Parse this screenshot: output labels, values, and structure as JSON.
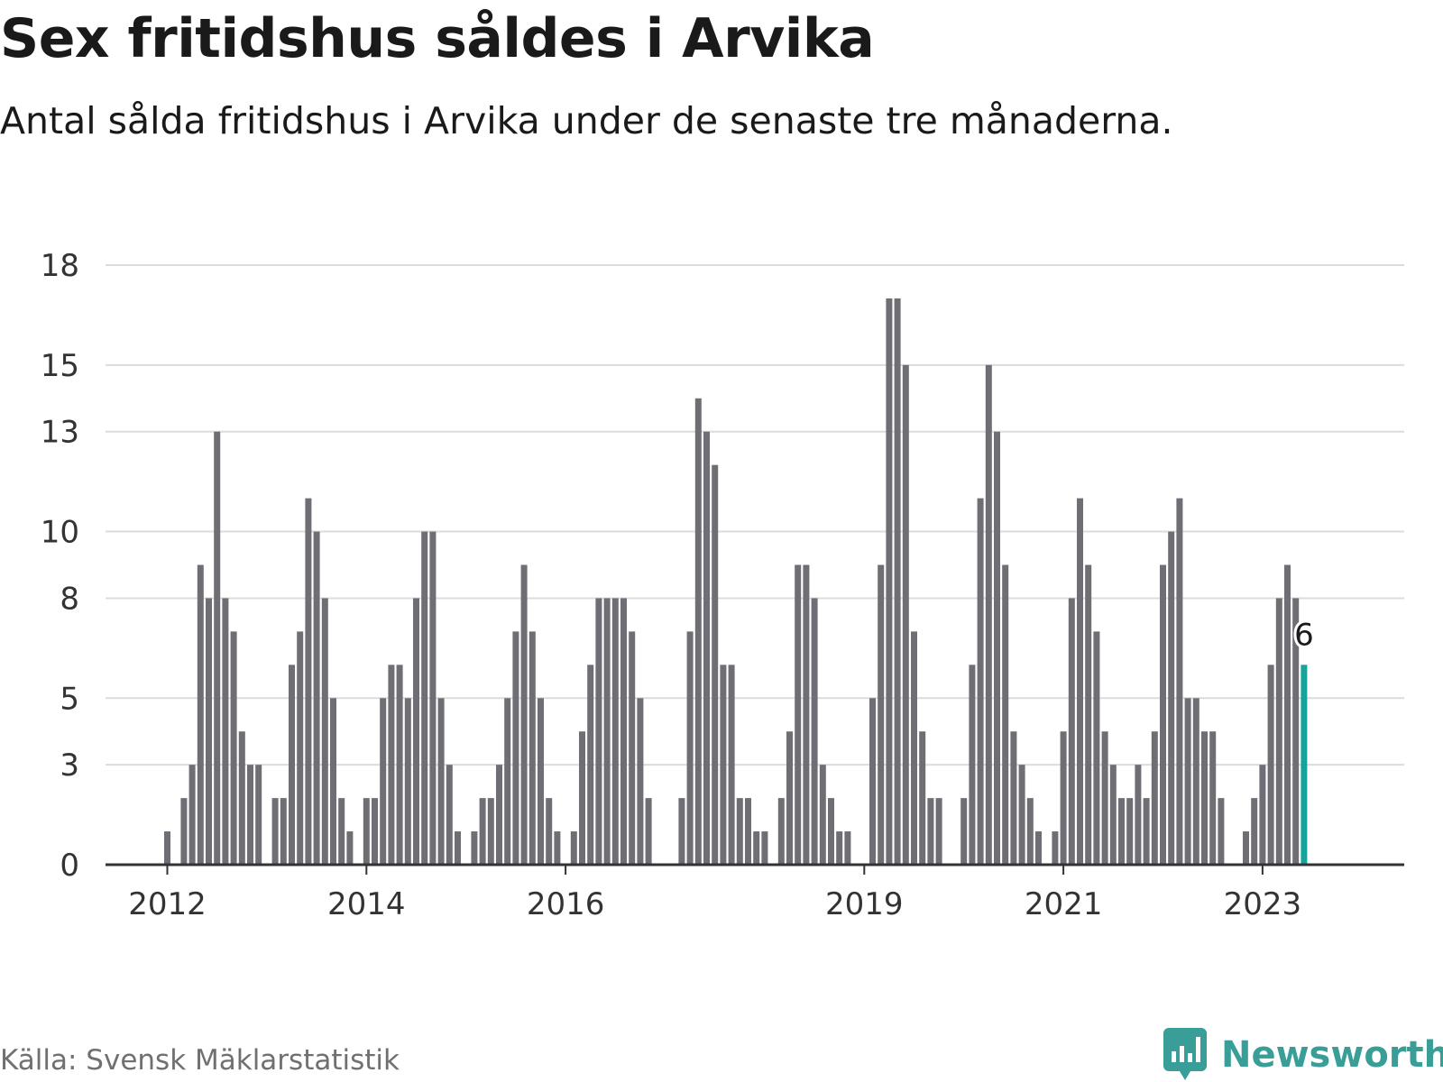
{
  "title": "Sex fritidshus såldes i Arvika",
  "subtitle": "Antal sålda fritidshus i Arvika under de senaste tre månaderna.",
  "source": "Källa: Svensk Mäklarstatistik",
  "brand": "Newsworthy",
  "colors": {
    "bar": "#6e6e74",
    "highlight": "#16a39a",
    "grid": "#dcdcdc",
    "axis": "#333333",
    "brand": "#3a9e98"
  },
  "chart_data": {
    "type": "bar",
    "x_start": "2012-01",
    "x_interval": "month",
    "x_ticks": [
      "2012",
      "2014",
      "2016",
      "2019",
      "2021",
      "2023"
    ],
    "y_ticks": [
      "0",
      "3",
      "5",
      "8",
      "10",
      "13",
      "15",
      "18"
    ],
    "ylim": [
      0,
      18
    ],
    "values": [
      1,
      0,
      2,
      3,
      9,
      8,
      13,
      8,
      7,
      4,
      3,
      3,
      0,
      2,
      2,
      6,
      7,
      11,
      10,
      8,
      5,
      2,
      1,
      0,
      2,
      2,
      5,
      6,
      6,
      5,
      8,
      10,
      10,
      5,
      3,
      1,
      0,
      1,
      2,
      2,
      3,
      5,
      7,
      9,
      7,
      5,
      2,
      1,
      0,
      1,
      4,
      6,
      8,
      8,
      8,
      8,
      7,
      5,
      2,
      0,
      0,
      0,
      2,
      7,
      14,
      13,
      12,
      6,
      6,
      2,
      2,
      1,
      1,
      0,
      2,
      4,
      9,
      9,
      8,
      3,
      2,
      1,
      1,
      0,
      0,
      5,
      9,
      17,
      17,
      15,
      7,
      4,
      2,
      2,
      0,
      0,
      2,
      6,
      11,
      15,
      13,
      9,
      4,
      3,
      2,
      1,
      0,
      1,
      4,
      8,
      11,
      9,
      7,
      4,
      3,
      2,
      2,
      3,
      2,
      4,
      9,
      10,
      11,
      5,
      5,
      4,
      4,
      2,
      0,
      0,
      1,
      2,
      3,
      6,
      8,
      9,
      8,
      6
    ],
    "highlight_label": "6"
  }
}
